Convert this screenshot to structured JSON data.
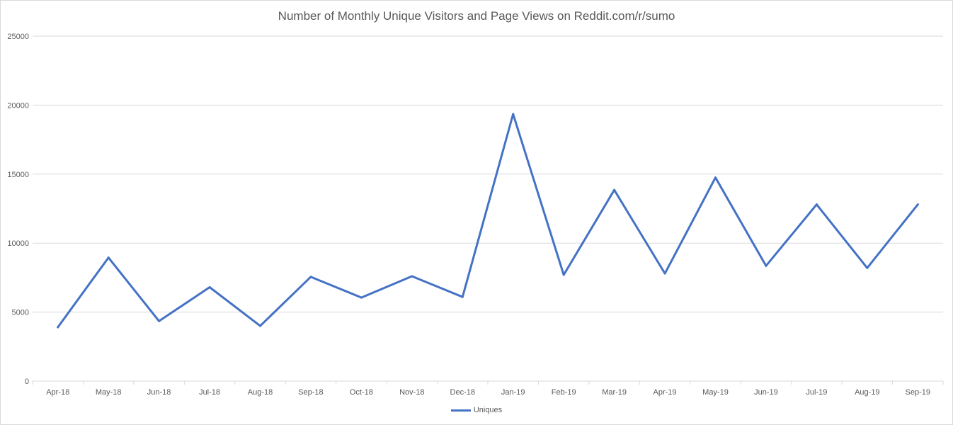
{
  "chart_data": {
    "type": "line",
    "title": "Number of Monthly Unique Visitors and Page Views on Reddit.com/r/sumo",
    "categories": [
      "Apr-18",
      "May-18",
      "Jun-18",
      "Jul-18",
      "Aug-18",
      "Sep-18",
      "Oct-18",
      "Nov-18",
      "Dec-18",
      "Jan-19",
      "Feb-19",
      "Mar-19",
      "Apr-19",
      "May-19",
      "Jun-19",
      "Jul-19",
      "Aug-19",
      "Sep-19"
    ],
    "series": [
      {
        "name": "Uniques",
        "color": "#4472c4",
        "values": [
          3900,
          8950,
          4350,
          6800,
          4000,
          7550,
          6050,
          7600,
          6100,
          19350,
          7700,
          13850,
          7800,
          14750,
          8350,
          12800,
          8200,
          12800
        ]
      }
    ],
    "ylim": [
      0,
      25000
    ],
    "yticks": [
      "0",
      "5000",
      "10000",
      "15000",
      "20000",
      "25000"
    ],
    "grid": true,
    "legend": "bottom"
  }
}
